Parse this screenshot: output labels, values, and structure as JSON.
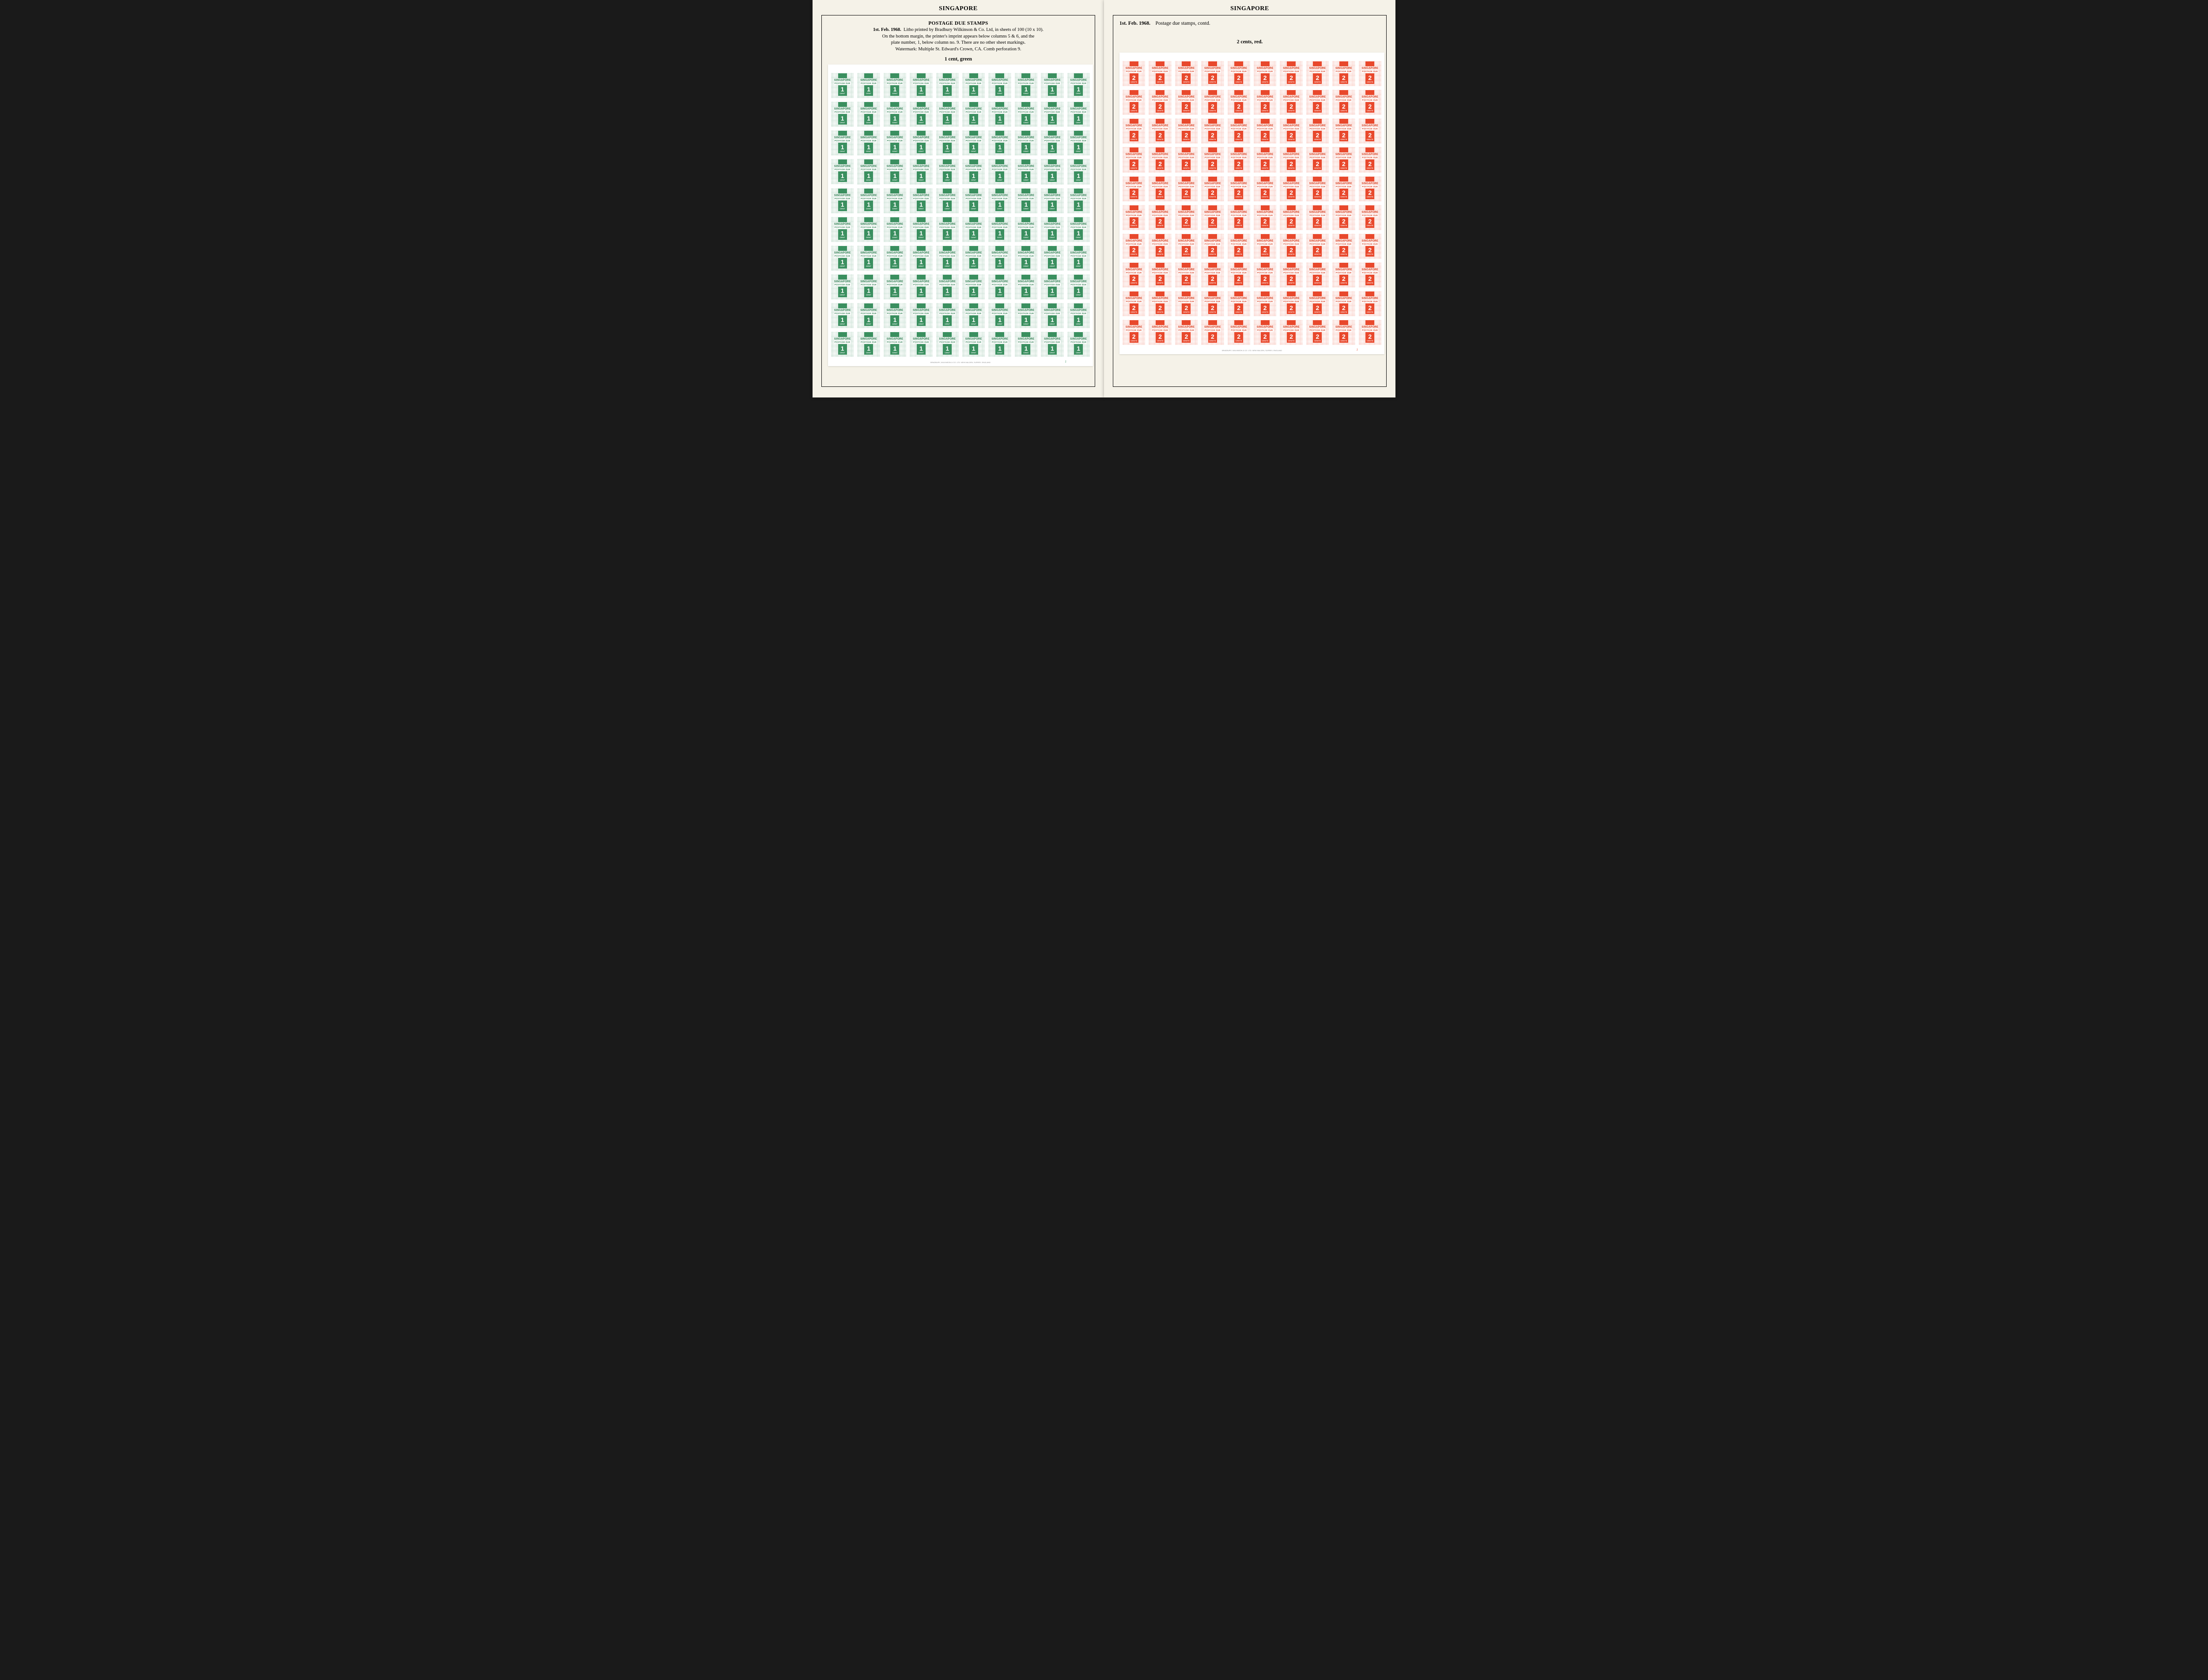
{
  "pages": [
    {
      "header": "SINGAPORE",
      "title_main": "POSTAGE DUE STAMPS",
      "date": "1st. Feb. 1968.",
      "desc_line1": "Litho printed by Bradbury Wilkinson & Co. Ltd, in sheets of 100 (10 x 10).",
      "desc_line2": "On the bottom margin, the printer's imprint appears below columns 5 & 6, and the",
      "desc_line3": "plate number, 1, below column no. 9. There are no other sheet markings.",
      "desc_line4": "Watermark: Multiple St. Edward's Crown, CA. Comb perforation 9.",
      "denom_label": "1 cent, green",
      "sheet": {
        "color_class": "green",
        "rows": 10,
        "cols": 10,
        "stamp": {
          "country": "SINGAPORE",
          "due": "POSTAGE DUE",
          "value": "1",
          "unit": "CENT"
        },
        "imprint": "BRADBURY, WILKINSON & CO. LTD. NEW MALDEN, SURREY, ENGLAND",
        "plate": "1",
        "accent_color": "#3a8f5f"
      }
    },
    {
      "header": "SINGAPORE",
      "date": "1st. Feb. 1968.",
      "subtitle": "Postage due stamps, contd.",
      "denom_label": "2 cents, red.",
      "sheet": {
        "color_class": "red",
        "rows": 10,
        "cols": 10,
        "stamp": {
          "country": "SINGAPORE",
          "due": "POSTAGE DUE",
          "value": "2",
          "unit": "CENTS"
        },
        "imprint": "BRADBURY, WILKINSON & CO. LTD. NEW MALDEN, SURREY, ENGLAND",
        "plate": "1",
        "accent_color": "#e8482c"
      }
    }
  ]
}
